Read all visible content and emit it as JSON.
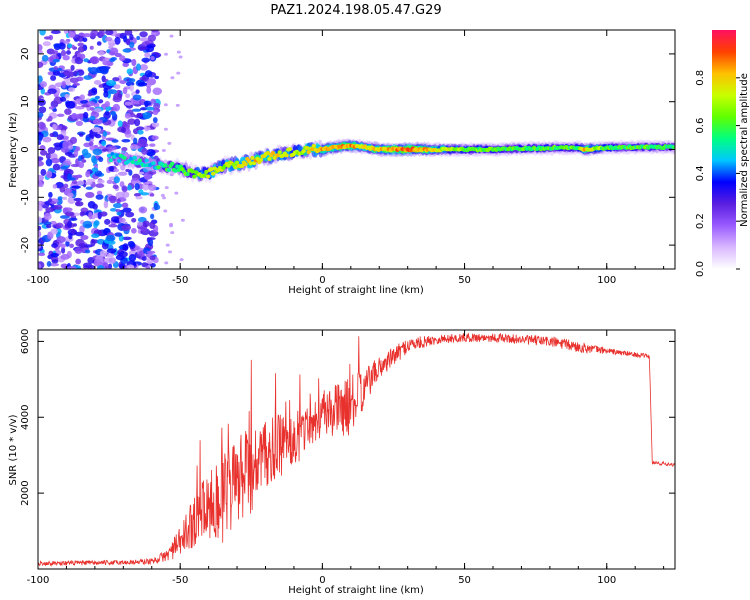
{
  "title": "PAZ1.2024.198.05.47.G29",
  "chart_data": [
    {
      "type": "heatmap",
      "xlabel": "Height of straight line (km)",
      "ylabel": "Frequency (Hz)",
      "xlim": [
        -100,
        124
      ],
      "ylim": [
        -25,
        25
      ],
      "xticks": [
        -100,
        -50,
        0,
        50,
        100
      ],
      "yticks": [
        20,
        10,
        0,
        -10,
        -20
      ],
      "colorbar": {
        "label": "Normalized spectral amplitude",
        "range": [
          0,
          1
        ],
        "ticks": [
          0.0,
          0.2,
          0.4,
          0.6,
          0.8
        ],
        "colors": [
          "#ffffff",
          "#d9b8ff",
          "#9a5cff",
          "#5a1ee0",
          "#0000ff",
          "#00c8ff",
          "#00ff80",
          "#60ff00",
          "#c8ff00",
          "#ffc000",
          "#ff4000",
          "#ff1060"
        ]
      },
      "ridge": [
        {
          "x": -75,
          "y": -1.5,
          "a": 0.45
        },
        {
          "x": -70,
          "y": -2.0,
          "a": 0.5
        },
        {
          "x": -60,
          "y": -3.0,
          "a": 0.5
        },
        {
          "x": -55,
          "y": -3.5,
          "a": 0.55
        },
        {
          "x": -50,
          "y": -4.0,
          "a": 0.6
        },
        {
          "x": -45,
          "y": -5.0,
          "a": 0.65
        },
        {
          "x": -40,
          "y": -5.0,
          "a": 0.7
        },
        {
          "x": -35,
          "y": -3.5,
          "a": 0.7
        },
        {
          "x": -30,
          "y": -3.0,
          "a": 0.75
        },
        {
          "x": -25,
          "y": -2.5,
          "a": 0.8
        },
        {
          "x": -20,
          "y": -1.5,
          "a": 0.8
        },
        {
          "x": -15,
          "y": -1.0,
          "a": 0.75
        },
        {
          "x": -10,
          "y": -0.5,
          "a": 0.7
        },
        {
          "x": -5,
          "y": 0.0,
          "a": 0.75
        },
        {
          "x": 0,
          "y": 0.0,
          "a": 0.85
        },
        {
          "x": 5,
          "y": 0.5,
          "a": 0.8
        },
        {
          "x": 10,
          "y": 0.8,
          "a": 0.85
        },
        {
          "x": 15,
          "y": 0.5,
          "a": 0.75
        },
        {
          "x": 20,
          "y": 0.0,
          "a": 0.8
        },
        {
          "x": 30,
          "y": 0.0,
          "a": 0.9
        },
        {
          "x": 40,
          "y": 0.0,
          "a": 0.75
        },
        {
          "x": 50,
          "y": 0.0,
          "a": 0.65
        },
        {
          "x": 60,
          "y": 0.0,
          "a": 0.6
        },
        {
          "x": 70,
          "y": 0.2,
          "a": 0.62
        },
        {
          "x": 80,
          "y": 0.3,
          "a": 0.6
        },
        {
          "x": 90,
          "y": 0.4,
          "a": 0.6
        },
        {
          "x": 92,
          "y": 0.0,
          "a": 0.8
        },
        {
          "x": 100,
          "y": 0.4,
          "a": 0.6
        },
        {
          "x": 110,
          "y": 0.5,
          "a": 0.6
        },
        {
          "x": 124,
          "y": 0.5,
          "a": 0.55
        }
      ],
      "noise_region": {
        "x": [
          -100,
          -58
        ],
        "y": [
          -25,
          25
        ],
        "a": [
          0.1,
          0.45
        ]
      }
    },
    {
      "type": "line",
      "xlabel": "Height of straight line (km)",
      "ylabel": "SNR (10 * v/v)",
      "xlim": [
        -100,
        124
      ],
      "ylim": [
        0,
        6300
      ],
      "xticks": [
        -100,
        -50,
        0,
        50,
        100
      ],
      "yticks": [
        2000,
        4000,
        6000
      ],
      "color": "#e8302c",
      "envelope": [
        {
          "x": -100,
          "y": 150,
          "amp": 60
        },
        {
          "x": -70,
          "y": 170,
          "amp": 60
        },
        {
          "x": -60,
          "y": 200,
          "amp": 80
        },
        {
          "x": -55,
          "y": 350,
          "amp": 150
        },
        {
          "x": -50,
          "y": 700,
          "amp": 400
        },
        {
          "x": -45,
          "y": 1300,
          "amp": 700
        },
        {
          "x": -40,
          "y": 1700,
          "amp": 1000
        },
        {
          "x": -35,
          "y": 1800,
          "amp": 1200
        },
        {
          "x": -30,
          "y": 2300,
          "amp": 1200
        },
        {
          "x": -25,
          "y": 2600,
          "amp": 1200
        },
        {
          "x": -20,
          "y": 3000,
          "amp": 900
        },
        {
          "x": -15,
          "y": 3200,
          "amp": 900
        },
        {
          "x": -10,
          "y": 3400,
          "amp": 800
        },
        {
          "x": -5,
          "y": 3800,
          "amp": 600
        },
        {
          "x": 0,
          "y": 4100,
          "amp": 600
        },
        {
          "x": 5,
          "y": 4200,
          "amp": 700
        },
        {
          "x": 10,
          "y": 4300,
          "amp": 800
        },
        {
          "x": 15,
          "y": 4800,
          "amp": 500
        },
        {
          "x": 20,
          "y": 5300,
          "amp": 300
        },
        {
          "x": 25,
          "y": 5600,
          "amp": 250
        },
        {
          "x": 30,
          "y": 5900,
          "amp": 200
        },
        {
          "x": 40,
          "y": 6050,
          "amp": 120
        },
        {
          "x": 50,
          "y": 6100,
          "amp": 120
        },
        {
          "x": 60,
          "y": 6100,
          "amp": 120
        },
        {
          "x": 70,
          "y": 6050,
          "amp": 120
        },
        {
          "x": 80,
          "y": 6000,
          "amp": 150
        },
        {
          "x": 90,
          "y": 5850,
          "amp": 150
        },
        {
          "x": 100,
          "y": 5750,
          "amp": 80
        },
        {
          "x": 110,
          "y": 5650,
          "amp": 60
        },
        {
          "x": 115,
          "y": 5600,
          "amp": 60
        },
        {
          "x": 116,
          "y": 2800,
          "amp": 50
        },
        {
          "x": 124,
          "y": 2750,
          "amp": 50
        }
      ]
    }
  ]
}
